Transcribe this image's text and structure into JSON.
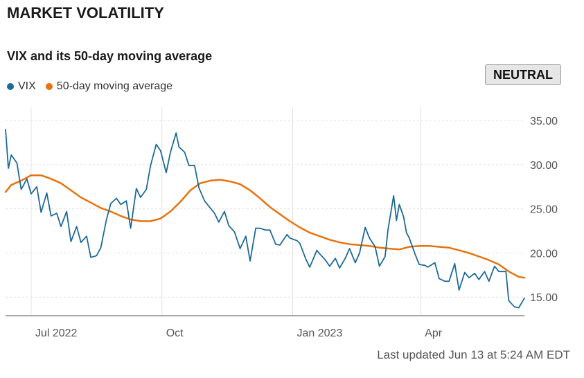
{
  "title": "MARKET VOLATILITY",
  "badge": "NEUTRAL",
  "footer": "Last updated Jun 13 at 5:24 AM EDT",
  "colors": {
    "vix": "#1d6a96",
    "ma": "#e8730c",
    "grid": "#e0e0e0",
    "axis": "#8c8c8c"
  },
  "chart_data": {
    "type": "line",
    "title": "VIX and its 50-day moving average",
    "legend_position": "top-left",
    "grid": true,
    "x_axis": {
      "ticks": [
        "Jul 2022",
        "Oct",
        "Jan 2023",
        "Apr"
      ],
      "range": [
        "2022-06-13",
        "2023-06-13"
      ]
    },
    "y_axis": {
      "position": "right",
      "ticks": [
        "15.00",
        "20.00",
        "25.00",
        "30.00",
        "35.00"
      ],
      "ylim": [
        12.9,
        36.5
      ]
    },
    "series": [
      {
        "name": "VIX",
        "color": "#1d6a96",
        "points": [
          [
            "2022-06-13",
            34.0
          ],
          [
            "2022-06-15",
            29.6
          ],
          [
            "2022-06-17",
            31.1
          ],
          [
            "2022-06-21",
            30.2
          ],
          [
            "2022-06-24",
            27.2
          ],
          [
            "2022-06-28",
            28.4
          ],
          [
            "2022-07-01",
            26.7
          ],
          [
            "2022-07-05",
            27.5
          ],
          [
            "2022-07-08",
            24.6
          ],
          [
            "2022-07-12",
            26.8
          ],
          [
            "2022-07-15",
            24.2
          ],
          [
            "2022-07-19",
            24.5
          ],
          [
            "2022-07-22",
            23.0
          ],
          [
            "2022-07-26",
            24.7
          ],
          [
            "2022-07-29",
            21.3
          ],
          [
            "2022-08-02",
            23.0
          ],
          [
            "2022-08-05",
            21.2
          ],
          [
            "2022-08-09",
            21.9
          ],
          [
            "2022-08-12",
            19.5
          ],
          [
            "2022-08-16",
            19.7
          ],
          [
            "2022-08-19",
            20.6
          ],
          [
            "2022-08-23",
            23.8
          ],
          [
            "2022-08-26",
            25.6
          ],
          [
            "2022-08-30",
            26.2
          ],
          [
            "2022-09-02",
            25.5
          ],
          [
            "2022-09-06",
            25.9
          ],
          [
            "2022-09-09",
            22.8
          ],
          [
            "2022-09-13",
            27.3
          ],
          [
            "2022-09-16",
            26.3
          ],
          [
            "2022-09-20",
            27.2
          ],
          [
            "2022-09-23",
            29.9
          ],
          [
            "2022-09-27",
            32.3
          ],
          [
            "2022-09-30",
            31.6
          ],
          [
            "2022-10-04",
            29.1
          ],
          [
            "2022-10-07",
            31.4
          ],
          [
            "2022-10-11",
            33.6
          ],
          [
            "2022-10-13",
            32.0
          ],
          [
            "2022-10-17",
            31.4
          ],
          [
            "2022-10-20",
            29.9
          ],
          [
            "2022-10-24",
            29.9
          ],
          [
            "2022-10-27",
            27.4
          ],
          [
            "2022-10-31",
            25.9
          ],
          [
            "2022-11-03",
            25.3
          ],
          [
            "2022-11-07",
            24.5
          ],
          [
            "2022-11-10",
            23.5
          ],
          [
            "2022-11-14",
            24.7
          ],
          [
            "2022-11-17",
            23.1
          ],
          [
            "2022-11-21",
            22.4
          ],
          [
            "2022-11-25",
            20.5
          ],
          [
            "2022-11-29",
            21.9
          ],
          [
            "2022-12-02",
            19.1
          ],
          [
            "2022-12-06",
            22.8
          ],
          [
            "2022-12-09",
            22.8
          ],
          [
            "2022-12-13",
            22.6
          ],
          [
            "2022-12-16",
            22.6
          ],
          [
            "2022-12-20",
            21.0
          ],
          [
            "2022-12-23",
            20.9
          ],
          [
            "2022-12-28",
            22.1
          ],
          [
            "2022-12-30",
            21.7
          ],
          [
            "2023-01-04",
            21.4
          ],
          [
            "2023-01-06",
            21.1
          ],
          [
            "2023-01-10",
            19.4
          ],
          [
            "2023-01-13",
            18.4
          ],
          [
            "2023-01-18",
            20.3
          ],
          [
            "2023-01-20",
            19.9
          ],
          [
            "2023-01-24",
            19.2
          ],
          [
            "2023-01-27",
            18.5
          ],
          [
            "2023-01-31",
            19.4
          ],
          [
            "2023-02-03",
            18.3
          ],
          [
            "2023-02-07",
            19.4
          ],
          [
            "2023-02-10",
            20.5
          ],
          [
            "2023-02-14",
            18.9
          ],
          [
            "2023-02-17",
            20.0
          ],
          [
            "2023-02-21",
            22.9
          ],
          [
            "2023-02-24",
            21.7
          ],
          [
            "2023-02-28",
            20.7
          ],
          [
            "2023-03-03",
            18.5
          ],
          [
            "2023-03-07",
            19.6
          ],
          [
            "2023-03-09",
            22.6
          ],
          [
            "2023-03-13",
            26.5
          ],
          [
            "2023-03-15",
            23.7
          ],
          [
            "2023-03-17",
            25.5
          ],
          [
            "2023-03-20",
            24.1
          ],
          [
            "2023-03-22",
            22.3
          ],
          [
            "2023-03-24",
            21.7
          ],
          [
            "2023-03-28",
            19.9
          ],
          [
            "2023-03-31",
            18.7
          ],
          [
            "2023-04-04",
            18.6
          ],
          [
            "2023-04-06",
            18.4
          ],
          [
            "2023-04-11",
            18.9
          ],
          [
            "2023-04-14",
            17.1
          ],
          [
            "2023-04-18",
            16.8
          ],
          [
            "2023-04-21",
            16.8
          ],
          [
            "2023-04-25",
            18.8
          ],
          [
            "2023-04-28",
            15.8
          ],
          [
            "2023-05-02",
            17.8
          ],
          [
            "2023-05-05",
            17.2
          ],
          [
            "2023-05-09",
            17.7
          ],
          [
            "2023-05-12",
            17.0
          ],
          [
            "2023-05-16",
            17.9
          ],
          [
            "2023-05-19",
            16.8
          ],
          [
            "2023-05-23",
            18.5
          ],
          [
            "2023-05-26",
            17.9
          ],
          [
            "2023-05-31",
            17.9
          ],
          [
            "2023-06-02",
            14.6
          ],
          [
            "2023-06-06",
            13.9
          ],
          [
            "2023-06-09",
            13.8
          ],
          [
            "2023-06-12",
            14.6
          ],
          [
            "2023-06-13",
            14.9
          ]
        ]
      },
      {
        "name": "50-day moving average",
        "color": "#e8730c",
        "points": [
          [
            "2022-06-13",
            26.9
          ],
          [
            "2022-06-17",
            27.7
          ],
          [
            "2022-06-24",
            28.2
          ],
          [
            "2022-07-01",
            28.8
          ],
          [
            "2022-07-08",
            28.8
          ],
          [
            "2022-07-15",
            28.4
          ],
          [
            "2022-07-22",
            27.9
          ],
          [
            "2022-07-29",
            27.1
          ],
          [
            "2022-08-05",
            26.3
          ],
          [
            "2022-08-12",
            25.7
          ],
          [
            "2022-08-19",
            25.1
          ],
          [
            "2022-08-26",
            24.7
          ],
          [
            "2022-09-02",
            24.2
          ],
          [
            "2022-09-09",
            23.8
          ],
          [
            "2022-09-16",
            23.6
          ],
          [
            "2022-09-23",
            23.6
          ],
          [
            "2022-09-30",
            23.9
          ],
          [
            "2022-10-07",
            24.7
          ],
          [
            "2022-10-14",
            25.8
          ],
          [
            "2022-10-21",
            27.1
          ],
          [
            "2022-10-28",
            27.9
          ],
          [
            "2022-11-04",
            28.2
          ],
          [
            "2022-11-11",
            28.3
          ],
          [
            "2022-11-18",
            28.1
          ],
          [
            "2022-11-25",
            27.8
          ],
          [
            "2022-12-02",
            27.1
          ],
          [
            "2022-12-09",
            26.2
          ],
          [
            "2022-12-16",
            25.2
          ],
          [
            "2022-12-23",
            24.4
          ],
          [
            "2022-12-30",
            23.6
          ],
          [
            "2023-01-06",
            22.9
          ],
          [
            "2023-01-13",
            22.3
          ],
          [
            "2023-01-20",
            21.9
          ],
          [
            "2023-01-27",
            21.5
          ],
          [
            "2023-02-03",
            21.2
          ],
          [
            "2023-02-10",
            21.0
          ],
          [
            "2023-02-17",
            20.9
          ],
          [
            "2023-02-24",
            20.8
          ],
          [
            "2023-03-03",
            20.6
          ],
          [
            "2023-03-10",
            20.5
          ],
          [
            "2023-03-17",
            20.4
          ],
          [
            "2023-03-24",
            20.7
          ],
          [
            "2023-03-31",
            20.8
          ],
          [
            "2023-04-07",
            20.8
          ],
          [
            "2023-04-14",
            20.7
          ],
          [
            "2023-04-21",
            20.6
          ],
          [
            "2023-04-28",
            20.3
          ],
          [
            "2023-05-05",
            20.0
          ],
          [
            "2023-05-12",
            19.6
          ],
          [
            "2023-05-19",
            19.2
          ],
          [
            "2023-05-26",
            18.7
          ],
          [
            "2023-06-02",
            17.9
          ],
          [
            "2023-06-09",
            17.3
          ],
          [
            "2023-06-13",
            17.2
          ]
        ]
      }
    ]
  }
}
